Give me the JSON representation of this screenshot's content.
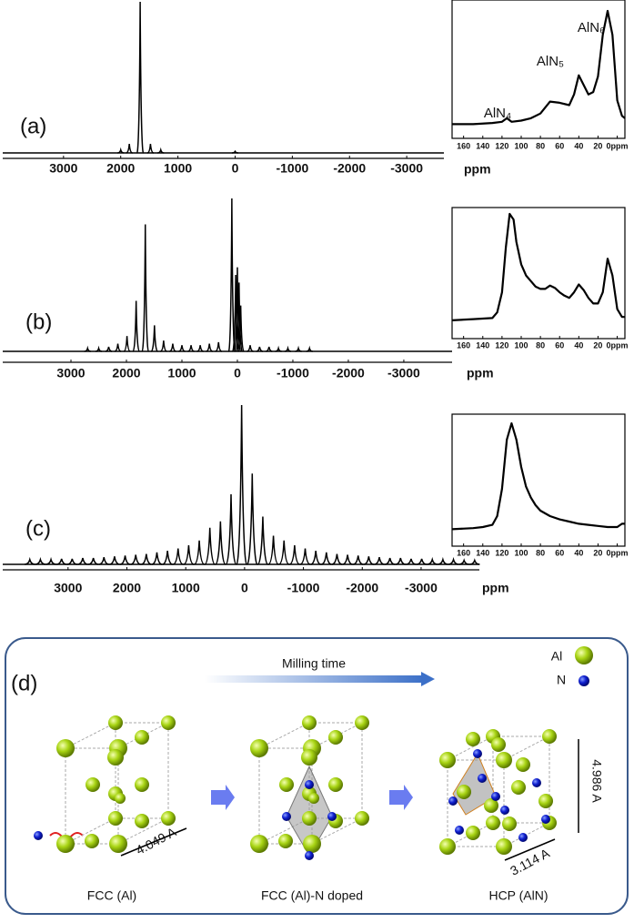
{
  "chart_data": [
    {
      "type": "peaks",
      "panel_label": "(a)",
      "x_label": "ppm",
      "xlim": [
        4063,
        -3650
      ],
      "ylim": [
        0,
        100
      ],
      "xticks": [
        3000,
        2000,
        1000,
        0,
        -1000,
        -2000,
        -3000
      ],
      "color": "#000000",
      "x": [
        2000,
        1850,
        1660,
        1480,
        1300,
        0
      ],
      "values": [
        2,
        6,
        100,
        6,
        2,
        1
      ]
    },
    {
      "type": "line",
      "xlim": [
        172,
        -8
      ],
      "ylim": [
        0,
        100
      ],
      "xticks": [
        160,
        140,
        120,
        100,
        80,
        60,
        40,
        20,
        {
          "value": 0,
          "label": "0ppm"
        }
      ],
      "color": "#000000",
      "annotations": [
        "AlN₄",
        "AlN₅",
        "AlN₆"
      ],
      "x": [
        172,
        150,
        130,
        120,
        115,
        110,
        100,
        90,
        80,
        70,
        60,
        50,
        45,
        40,
        35,
        30,
        25,
        20,
        15,
        10,
        5,
        0,
        -5,
        -8
      ],
      "y": [
        5,
        5,
        6,
        7,
        10,
        7,
        8,
        10,
        14,
        24,
        23,
        21,
        30,
        46,
        38,
        30,
        32,
        45,
        80,
        100,
        80,
        25,
        12,
        10
      ]
    },
    {
      "type": "peaks",
      "panel_label": "(b)",
      "x_label": "ppm",
      "xlim": [
        4230,
        -3870
      ],
      "ylim": [
        0,
        100
      ],
      "xticks": [
        3000,
        2000,
        1000,
        0,
        -1000,
        -2000,
        -3000
      ],
      "color": "#000000",
      "x": [
        2700,
        2500,
        2320,
        2155,
        1990,
        1825,
        1660,
        1495,
        1330,
        1165,
        1000,
        835,
        670,
        505,
        340,
        100,
        30,
        0,
        -30,
        -60,
        -230,
        -400,
        -570,
        -740,
        -910,
        -1100,
        -1300
      ],
      "values": [
        2,
        2,
        3,
        5,
        10,
        33,
        83,
        17,
        7,
        5,
        4,
        4,
        4,
        5,
        6,
        100,
        50,
        55,
        45,
        30,
        4,
        3,
        3,
        2,
        2,
        2,
        2
      ]
    },
    {
      "type": "line",
      "xlim": [
        172,
        -8
      ],
      "ylim": [
        0,
        100
      ],
      "xticks": [
        160,
        140,
        120,
        100,
        80,
        60,
        40,
        20,
        {
          "value": 0,
          "label": "0ppm"
        }
      ],
      "color": "#000000",
      "x": [
        172,
        150,
        130,
        125,
        120,
        116,
        112,
        108,
        105,
        100,
        95,
        90,
        85,
        80,
        75,
        70,
        65,
        60,
        55,
        50,
        45,
        40,
        35,
        30,
        25,
        20,
        15,
        10,
        5,
        0,
        -5,
        -8
      ],
      "y": [
        5,
        6,
        7,
        12,
        30,
        70,
        100,
        95,
        75,
        55,
        45,
        40,
        35,
        33,
        33,
        36,
        34,
        30,
        27,
        25,
        30,
        37,
        32,
        25,
        20,
        20,
        30,
        60,
        45,
        15,
        8,
        8
      ]
    },
    {
      "type": "peaks",
      "panel_label": "(c)",
      "x_label": "ppm",
      "xlim": [
        4110,
        -3990
      ],
      "ylim": [
        0,
        100
      ],
      "xticks": [
        3000,
        2000,
        1000,
        0,
        -1000,
        -2000,
        -3000
      ],
      "color": "#000000",
      "x": [
        3650,
        3470,
        3290,
        3110,
        2930,
        2750,
        2570,
        2390,
        2210,
        2030,
        1850,
        1670,
        1490,
        1310,
        1130,
        950,
        770,
        590,
        410,
        230,
        50,
        -130,
        -310,
        -490,
        -670,
        -850,
        -1030,
        -1210,
        -1390,
        -1570,
        -1750,
        -1930,
        -2110,
        -2290,
        -2470,
        -2650,
        -2830,
        -3010,
        -3190,
        -3370,
        -3550,
        -3730,
        -3910
      ],
      "values": [
        3,
        3,
        3,
        3.5,
        3.5,
        4,
        4,
        4.5,
        5,
        5.5,
        6,
        6.5,
        7.5,
        8.5,
        10,
        12,
        15,
        23,
        27,
        44,
        100,
        57,
        30,
        18,
        15,
        12,
        10,
        8.5,
        7.5,
        6.5,
        6,
        5.5,
        5,
        4.5,
        4,
        4,
        3.5,
        3.5,
        3,
        3,
        3,
        2.5,
        2.5
      ]
    },
    {
      "type": "line",
      "xlim": [
        172,
        -8
      ],
      "ylim": [
        0,
        100
      ],
      "xticks": [
        160,
        140,
        120,
        100,
        80,
        60,
        40,
        20,
        {
          "value": 0,
          "label": "0ppm"
        }
      ],
      "color": "#000000",
      "x": [
        172,
        150,
        140,
        130,
        125,
        120,
        115,
        110,
        105,
        100,
        95,
        90,
        85,
        80,
        70,
        60,
        50,
        40,
        30,
        20,
        10,
        0,
        -5,
        -8
      ],
      "y": [
        3,
        4,
        5,
        7,
        15,
        40,
        85,
        100,
        85,
        60,
        42,
        32,
        25,
        20,
        15,
        12,
        10,
        8,
        7,
        6,
        5,
        5,
        8,
        8
      ]
    }
  ],
  "diagram": {
    "label": "(d)",
    "arrow_label": "Milling time",
    "legend": [
      "Al",
      "N"
    ],
    "structures": [
      {
        "label": "FCC (Al)",
        "dimensions": [
          "4.049 A"
        ]
      },
      {
        "label": "FCC (Al)-N doped",
        "dimensions": []
      },
      {
        "label": "HCP (AlN)",
        "dimensions": [
          "4.986 A",
          "3.114 A"
        ]
      }
    ]
  }
}
